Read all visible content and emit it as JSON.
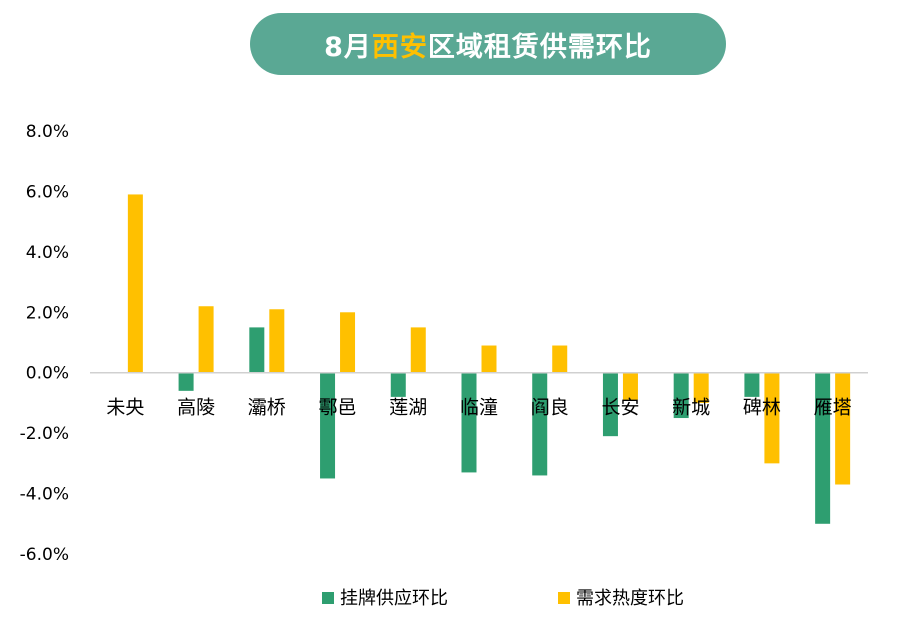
{
  "title": {
    "prefix": "8月",
    "highlight": "西安",
    "suffix": "区域租赁供需环比"
  },
  "colors": {
    "title_bg": "#5aa894",
    "highlight": "#ffc000",
    "supply": "#2e9e70",
    "demand": "#ffc000"
  },
  "chart_data": {
    "type": "bar",
    "categories": [
      "未央",
      "高陵",
      "灞桥",
      "鄠邑",
      "莲湖",
      "临潼",
      "阎良",
      "长安",
      "新城",
      "碑林",
      "雁塔"
    ],
    "series": [
      {
        "name": "挂牌供应环比",
        "values": [
          0.0,
          -0.6,
          1.5,
          -3.5,
          -0.8,
          -3.3,
          -3.4,
          -2.1,
          -1.5,
          -0.8,
          -5.0
        ]
      },
      {
        "name": "需求热度环比",
        "values": [
          5.9,
          2.2,
          2.1,
          2.0,
          1.5,
          0.9,
          0.9,
          -0.9,
          -1.0,
          -3.0,
          -3.7
        ]
      }
    ],
    "ylim": [
      -6,
      8
    ],
    "yticks": [
      "8.0%",
      "6.0%",
      "4.0%",
      "2.0%",
      "0.0%",
      "-2.0%",
      "-4.0%",
      "-6.0%"
    ],
    "ytick_values": [
      8,
      6,
      4,
      2,
      0,
      -2,
      -4,
      -6
    ],
    "legend_position": "bottom",
    "grid": false
  }
}
